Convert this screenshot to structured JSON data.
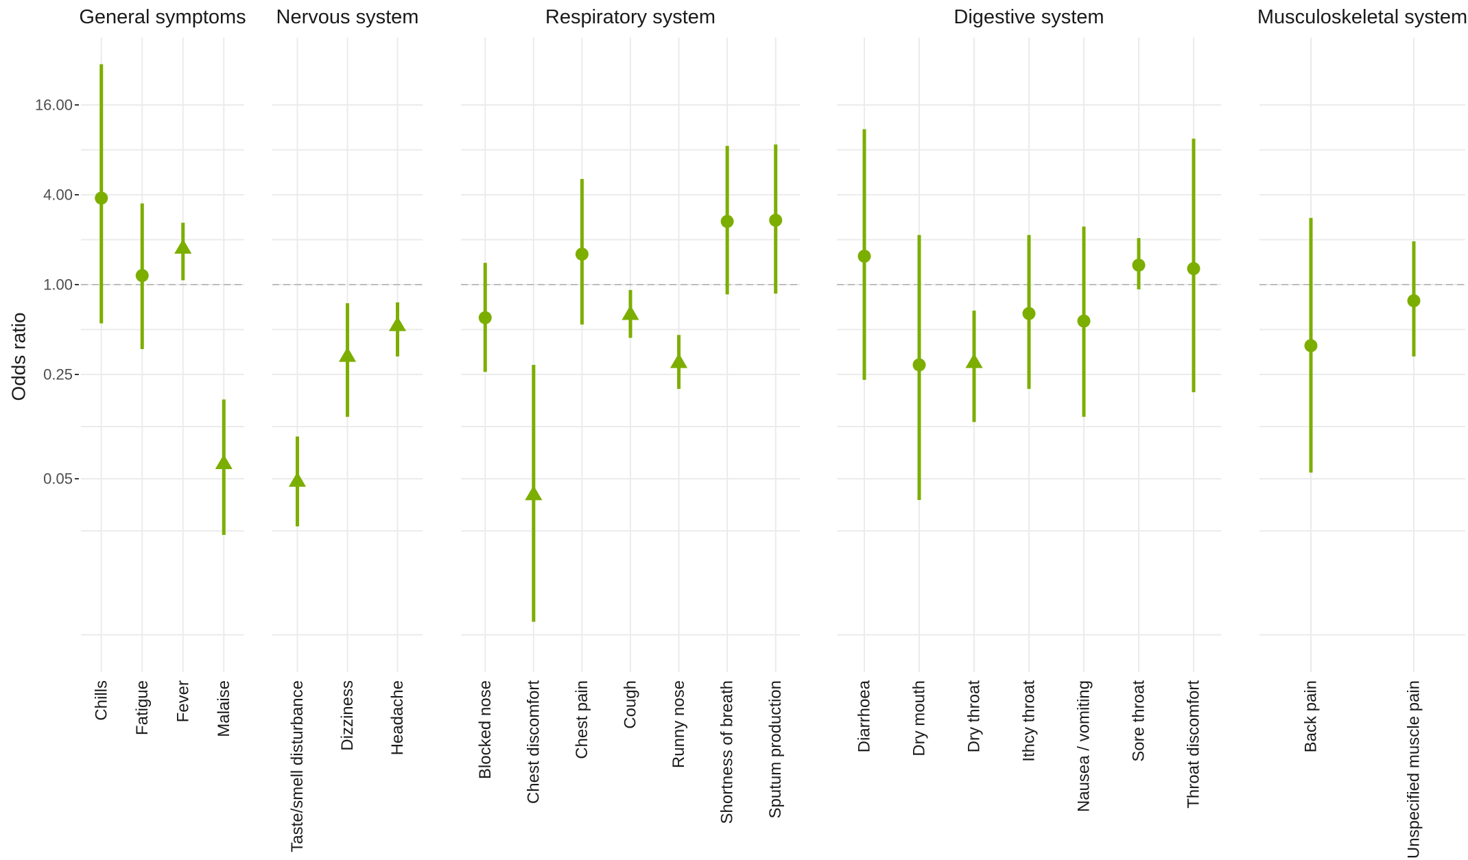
{
  "chart_data": {
    "type": "forest",
    "ylabel": "Odds ratio",
    "y_scale": "log",
    "y_ticks": [
      {
        "value": 0.05,
        "label": "0.05"
      },
      {
        "value": 0.25,
        "label": "0.25"
      },
      {
        "value": 1.0,
        "label": "1.00"
      },
      {
        "value": 4.0,
        "label": "4.00"
      },
      {
        "value": 16.0,
        "label": "16.00"
      }
    ],
    "reference_line": 1.0,
    "colors": {
      "series": "#7cae00",
      "reference": "#bdbdbd",
      "grid": "#ebebeb"
    },
    "marker_legend": {
      "circle": "dot",
      "triangle": "triangle"
    },
    "facets": [
      {
        "title": "General symptoms",
        "items": [
          {
            "label": "Chills",
            "estimate": 3.8,
            "lower": 0.55,
            "upper": 30.0,
            "marker": "circle"
          },
          {
            "label": "Fatigue",
            "estimate": 1.15,
            "lower": 0.37,
            "upper": 3.5,
            "marker": "circle"
          },
          {
            "label": "Fever",
            "estimate": 1.75,
            "lower": 1.07,
            "upper": 2.6,
            "marker": "triangle"
          },
          {
            "label": "Malaise",
            "estimate": 0.063,
            "lower": 0.021,
            "upper": 0.17,
            "marker": "triangle"
          }
        ]
      },
      {
        "title": "Nervous system",
        "items": [
          {
            "label": "Taste/smell disturbance",
            "estimate": 0.048,
            "lower": 0.024,
            "upper": 0.096,
            "marker": "triangle"
          },
          {
            "label": "Dizziness",
            "estimate": 0.33,
            "lower": 0.13,
            "upper": 0.75,
            "marker": "triangle"
          },
          {
            "label": "Headache",
            "estimate": 0.53,
            "lower": 0.33,
            "upper": 0.76,
            "marker": "triangle"
          }
        ]
      },
      {
        "title": "Respiratory system",
        "items": [
          {
            "label": "Blocked nose",
            "estimate": 0.6,
            "lower": 0.26,
            "upper": 1.4,
            "marker": "circle"
          },
          {
            "label": "Chest discomfort",
            "estimate": 0.039,
            "lower": 0.0055,
            "upper": 0.29,
            "marker": "triangle"
          },
          {
            "label": "Chest pain",
            "estimate": 1.6,
            "lower": 0.54,
            "upper": 5.1,
            "marker": "circle"
          },
          {
            "label": "Cough",
            "estimate": 0.63,
            "lower": 0.44,
            "upper": 0.92,
            "marker": "triangle"
          },
          {
            "label": "Runny nose",
            "estimate": 0.3,
            "lower": 0.2,
            "upper": 0.46,
            "marker": "triangle"
          },
          {
            "label": "Shortness of breath",
            "estimate": 2.65,
            "lower": 0.86,
            "upper": 8.5,
            "marker": "circle"
          },
          {
            "label": "Sputum production",
            "estimate": 2.7,
            "lower": 0.87,
            "upper": 8.7,
            "marker": "circle"
          }
        ]
      },
      {
        "title": "Digestive system",
        "items": [
          {
            "label": "Diarrhoea",
            "estimate": 1.55,
            "lower": 0.23,
            "upper": 11.0,
            "marker": "circle"
          },
          {
            "label": "Dry mouth",
            "estimate": 0.29,
            "lower": 0.036,
            "upper": 2.15,
            "marker": "circle"
          },
          {
            "label": "Dry throat",
            "estimate": 0.3,
            "lower": 0.12,
            "upper": 0.67,
            "marker": "triangle"
          },
          {
            "label": "Ithcy throat",
            "estimate": 0.64,
            "lower": 0.2,
            "upper": 2.15,
            "marker": "circle"
          },
          {
            "label": "Nausea / vomiting",
            "estimate": 0.57,
            "lower": 0.13,
            "upper": 2.45,
            "marker": "circle"
          },
          {
            "label": "Sore throat",
            "estimate": 1.35,
            "lower": 0.93,
            "upper": 2.05,
            "marker": "circle"
          },
          {
            "label": "Throat discomfort",
            "estimate": 1.28,
            "lower": 0.19,
            "upper": 9.5,
            "marker": "circle"
          }
        ]
      },
      {
        "title": "Musculoskeletal system",
        "items": [
          {
            "label": "Back pain",
            "estimate": 0.39,
            "lower": 0.055,
            "upper": 2.8,
            "marker": "circle"
          },
          {
            "label": "Unspecified muscle pain",
            "estimate": 0.78,
            "lower": 0.33,
            "upper": 1.95,
            "marker": "circle"
          }
        ]
      }
    ]
  }
}
